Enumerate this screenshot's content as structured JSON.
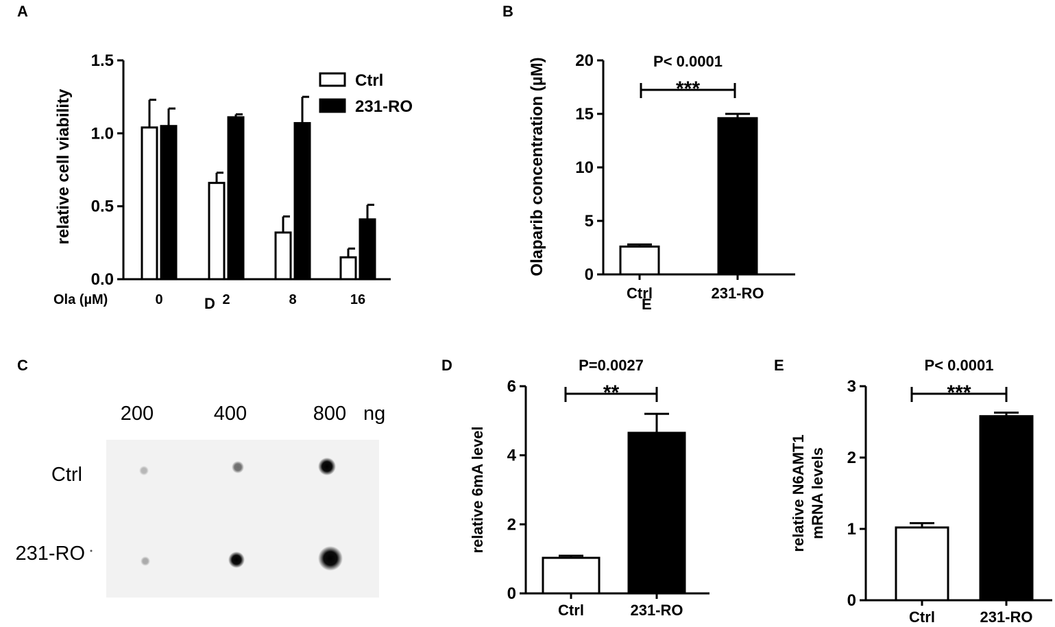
{
  "panels": {
    "A": {
      "letter": "A",
      "chart_data": {
        "type": "bar",
        "ylabel": "relative cell viability",
        "x_prefix": "Ola (µM)",
        "categories": [
          "0",
          "2",
          "8",
          "16"
        ],
        "ylim": [
          0,
          1.5
        ],
        "yticks": [
          "0.0",
          "0.5",
          "1.0",
          "1.5"
        ],
        "series": [
          {
            "name": "Ctrl",
            "values": [
              1.04,
              0.66,
              0.32,
              0.15
            ],
            "errors": [
              0.19,
              0.07,
              0.11,
              0.06
            ],
            "fill": "#ffffff"
          },
          {
            "name": "231-RO",
            "values": [
              1.05,
              1.11,
              1.07,
              0.41
            ],
            "errors": [
              0.12,
              0.02,
              0.18,
              0.1
            ],
            "fill": "#000000"
          }
        ],
        "legend": "top-right"
      }
    },
    "B": {
      "letter": "B",
      "chart_data": {
        "type": "bar",
        "ylabel": "Olaparib concentration (µM)",
        "categories": [
          "Ctrl",
          "231-RO"
        ],
        "values": [
          2.6,
          14.6
        ],
        "errors": [
          0.2,
          0.4
        ],
        "ylim": [
          0,
          20
        ],
        "yticks": [
          "0",
          "5",
          "10",
          "15",
          "20"
        ],
        "significance": {
          "p": "P< 0.0001",
          "stars": "***"
        }
      }
    },
    "C": {
      "letter": "C",
      "amounts": [
        "200",
        "400",
        "800"
      ],
      "unit": "ng",
      "rows": [
        "Ctrl",
        "231-RO"
      ]
    },
    "D": {
      "letter": "D",
      "chart_data": {
        "type": "bar",
        "ylabel": "relative 6mA level",
        "categories": [
          "Ctrl",
          "231-RO"
        ],
        "values": [
          1.03,
          4.65
        ],
        "errors": [
          0.06,
          0.55
        ],
        "ylim": [
          0,
          6
        ],
        "yticks": [
          "0",
          "2",
          "4",
          "6"
        ],
        "significance": {
          "p": "P=0.0027",
          "stars": "**"
        }
      }
    },
    "E": {
      "letter": "E",
      "chart_data": {
        "type": "bar",
        "ylabel_line1": "relative N6AMT1",
        "ylabel_line2": "mRNA levels",
        "categories": [
          "Ctrl",
          "231-RO"
        ],
        "values": [
          1.02,
          2.58
        ],
        "errors": [
          0.06,
          0.05
        ],
        "ylim": [
          0,
          3
        ],
        "yticks": [
          "0",
          "1",
          "2",
          "3"
        ],
        "significance": {
          "p": "P< 0.0001",
          "stars": "***"
        }
      }
    }
  },
  "stray_labels": {
    "d": "D",
    "e": "E"
  }
}
